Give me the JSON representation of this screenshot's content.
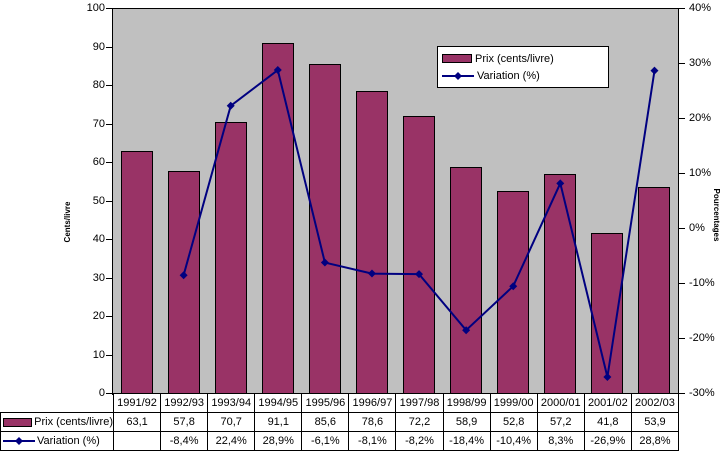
{
  "chart_data": {
    "type": "combo-bar-line",
    "categories": [
      "1991/92",
      "1992/93",
      "1993/94",
      "1994/95",
      "1995/96",
      "1996/97",
      "1997/98",
      "1998/99",
      "1999/00",
      "2000/01",
      "2001/02",
      "2002/03"
    ],
    "series": [
      {
        "name": "Prix (cents/livre)",
        "type": "bar",
        "axis": "left",
        "color": "#993366",
        "values": [
          63.1,
          57.8,
          70.7,
          91.1,
          85.6,
          78.6,
          72.2,
          58.9,
          52.8,
          57.2,
          41.8,
          53.9
        ]
      },
      {
        "name": "Variation (%)",
        "type": "line",
        "axis": "right",
        "color": "#000080",
        "marker": "diamond",
        "values": [
          null,
          -8.4,
          22.4,
          28.9,
          -6.1,
          -8.1,
          -8.2,
          -18.4,
          -10.4,
          8.3,
          -26.9,
          28.8
        ]
      }
    ],
    "left_axis": {
      "title": "Cents/livre",
      "min": 0,
      "max": 100,
      "step": 10,
      "tick_labels": [
        "0",
        "10",
        "20",
        "30",
        "40",
        "50",
        "60",
        "70",
        "80",
        "90",
        "100"
      ]
    },
    "right_axis": {
      "title": "Pourcentages",
      "min": -30,
      "max": 40,
      "step": 10,
      "tick_labels": [
        "-30%",
        "-20%",
        "-10%",
        "0%",
        "10%",
        "20%",
        "30%",
        "40%"
      ]
    },
    "plot_background": "#C0C0C0",
    "grid": "off",
    "legend": {
      "position": "top-right-inside",
      "items": [
        "Prix (cents/livre)",
        "Variation (%)"
      ]
    }
  },
  "table": {
    "col_headers": [
      "1991/92",
      "1992/93",
      "1993/94",
      "1994/95",
      "1995/96",
      "1996/97",
      "1997/98",
      "1998/99",
      "1999/00",
      "2000/01",
      "2001/02",
      "2002/03"
    ],
    "rows": [
      {
        "label": "Prix (cents/livre)",
        "icon": "bar-swatch",
        "values": [
          "63,1",
          "57,8",
          "70,7",
          "91,1",
          "85,6",
          "78,6",
          "72,2",
          "58,9",
          "52,8",
          "57,2",
          "41,8",
          "53,9"
        ]
      },
      {
        "label": "Variation (%)",
        "icon": "line-marker",
        "values": [
          "",
          "-8,4%",
          "22,4%",
          "28,9%",
          "-6,1%",
          "-8,1%",
          "-8,2%",
          "-18,4%",
          "-10,4%",
          "8,3%",
          "-26,9%",
          "28,8%"
        ]
      }
    ]
  }
}
